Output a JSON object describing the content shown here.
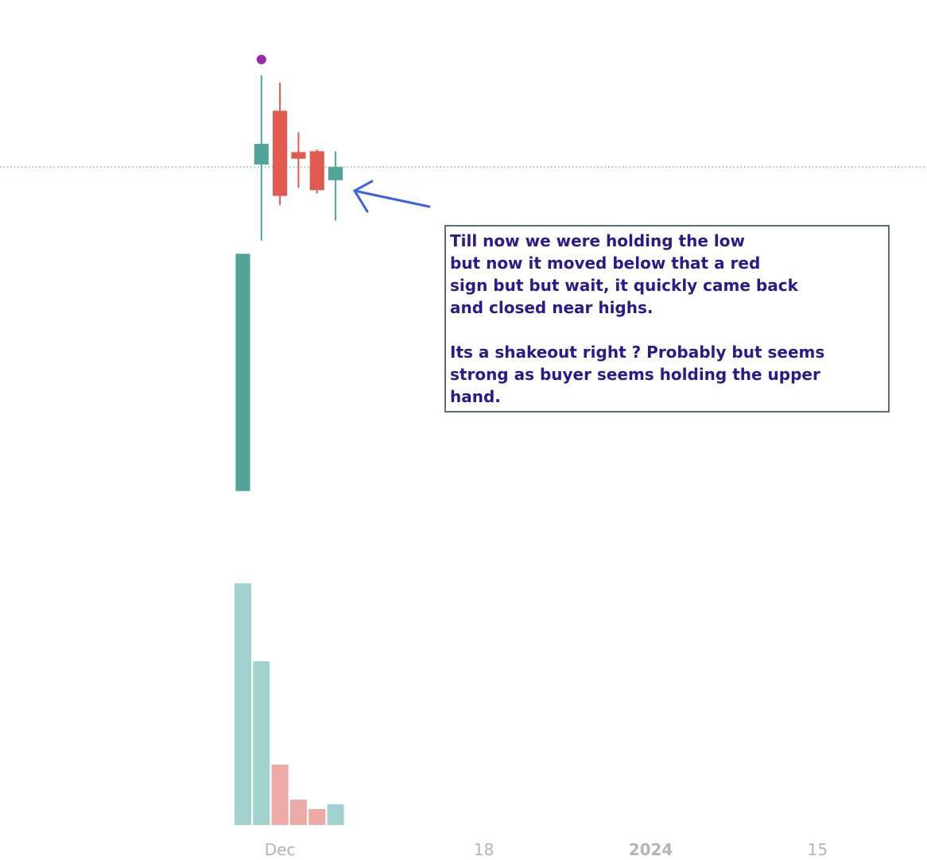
{
  "chart_data": {
    "type": "candlestick",
    "x": [
      0,
      1,
      2,
      3,
      4,
      5
    ],
    "open": [
      40.6,
      80.1,
      86.6,
      81.6,
      81.7,
      78.2
    ],
    "high": [
      69.3,
      90.9,
      90.0,
      84.0,
      81.9,
      81.7
    ],
    "low": [
      40.6,
      70.9,
      75.2,
      77.3,
      76.6,
      73.3
    ],
    "close": [
      69.3,
      82.6,
      76.3,
      80.8,
      77.0,
      79.8
    ],
    "up_color": "#52a49a",
    "down_color": "#e05a4f",
    "ylim": [
      0,
      100
    ],
    "xlim": [
      -13.1,
      36.9
    ],
    "xticks": [
      {
        "value": 2,
        "label": "Dec"
      },
      {
        "value": 13,
        "label": "18"
      },
      {
        "value": 22,
        "label": "2024",
        "bold": true
      },
      {
        "value": 31,
        "label": "15"
      }
    ],
    "price_line": true,
    "marker": {
      "x": 1,
      "y": 92.8,
      "color": "#9c27b0"
    },
    "volume": [
      100,
      67.8,
      25,
      10.5,
      6.6,
      8.6
    ],
    "volume_up_color": "#a1d2ce",
    "volume_down_color": "#eda9a5",
    "volume_ylim": [
      0,
      100
    ],
    "annotation": [
      [
        "Till now we were holding the low",
        "but now it moved below that a red",
        "sign but but wait, it quickly came back",
        "and closed near highs."
      ],
      [
        "Its a shakeout right ? Probably but seems",
        "strong as buyer seems holding the upper",
        "hand."
      ]
    ]
  }
}
